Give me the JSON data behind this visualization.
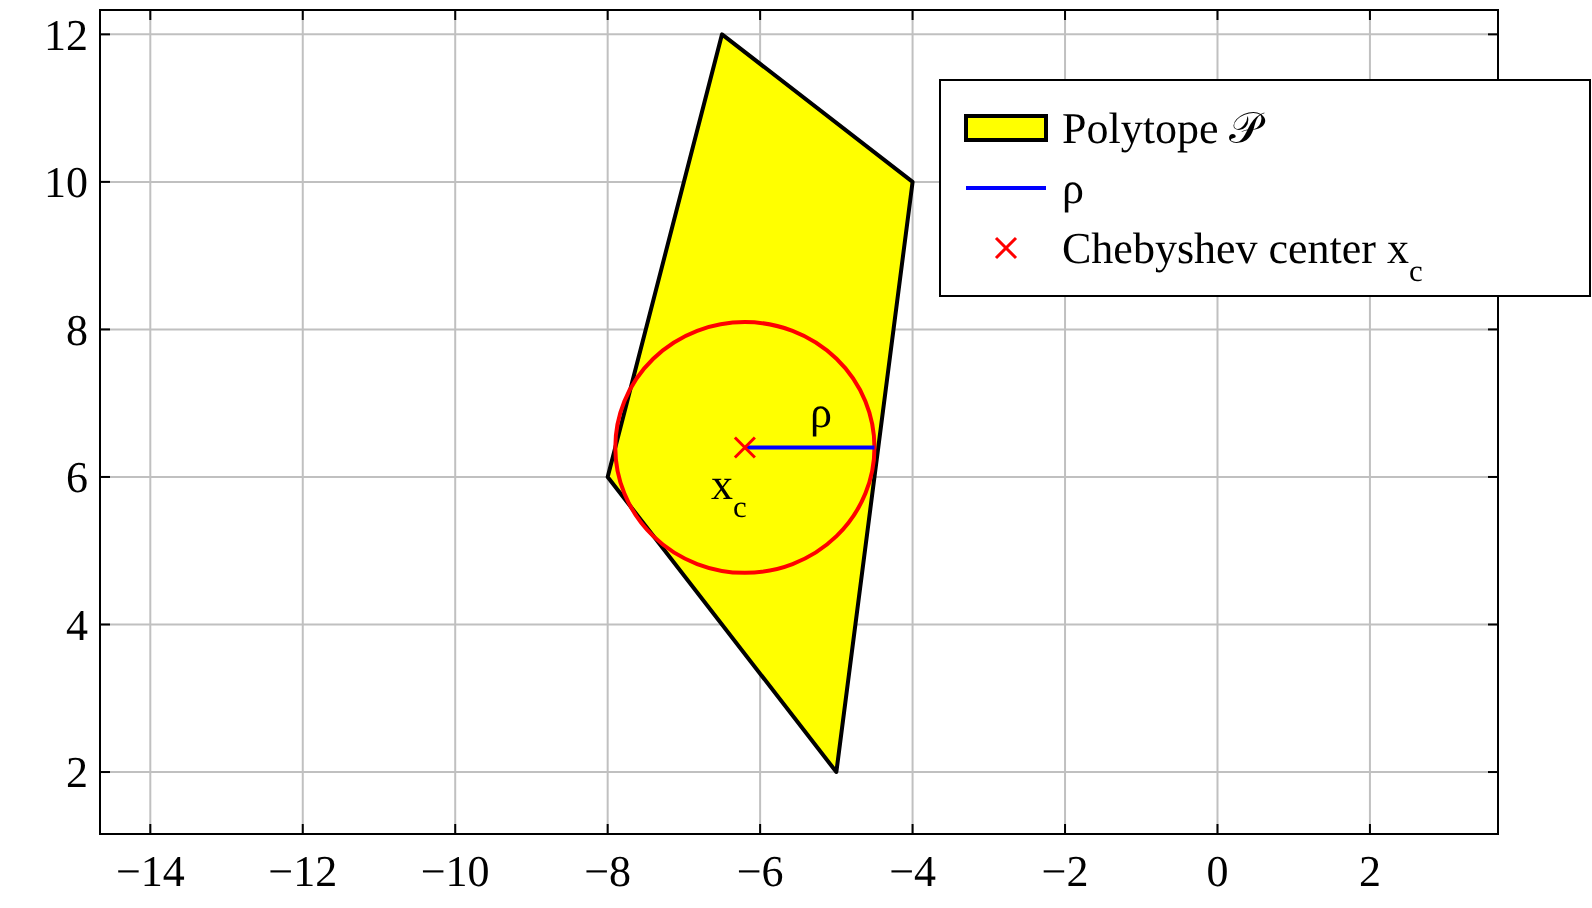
{
  "chart_data": {
    "type": "line",
    "xlim": [
      -14.66,
      3.68
    ],
    "ylim": [
      1.16,
      12.33
    ],
    "xticks": [
      {
        "value": -14,
        "label": "−14"
      },
      {
        "value": -12,
        "label": "−12"
      },
      {
        "value": -10,
        "label": "−10"
      },
      {
        "value": -8,
        "label": "−8"
      },
      {
        "value": -6,
        "label": "−6"
      },
      {
        "value": -4,
        "label": "−4"
      },
      {
        "value": -2,
        "label": "−2"
      },
      0,
      2
    ],
    "yticks": [
      2,
      4,
      6,
      8,
      10,
      12
    ],
    "grid": true,
    "legend": "top right",
    "series": [
      {
        "type": "area",
        "name": "Polytope 𝒫",
        "color": "#ffff00",
        "x": [
          -6.5,
          -4,
          -5,
          -8,
          -6.5
        ],
        "values": [
          12,
          10,
          2,
          6,
          12
        ]
      },
      {
        "name": "ρ",
        "color": "#0000ff",
        "x": [
          -6.2,
          -4.5
        ],
        "values": [
          6.4,
          6.4
        ]
      },
      {
        "type": "scatter",
        "name": "Chebyshev center x$_{c}$",
        "color": "#ff0000",
        "marker": "cross",
        "x": [
          -6.2
        ],
        "values": [
          6.4
        ]
      }
    ],
    "annotations": [
      "ρ",
      "x$_{c}$"
    ]
  }
}
